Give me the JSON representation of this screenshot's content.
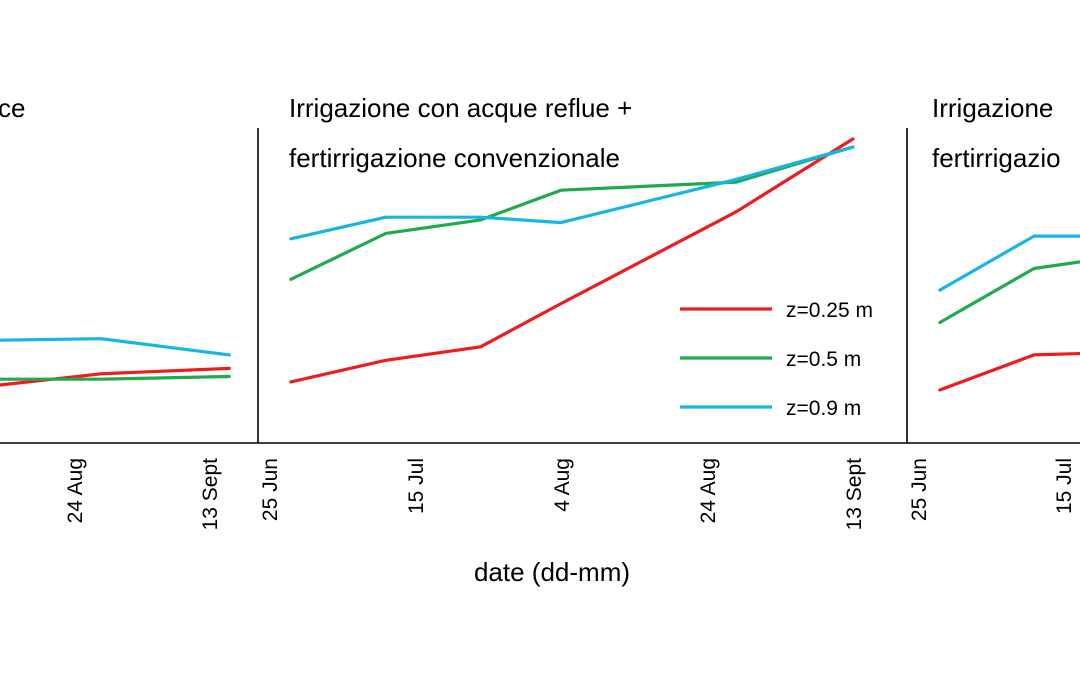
{
  "chart_data": {
    "type": "line",
    "xlabel": "date (dd-mm)",
    "colors": {
      "z025": "#ee1c1c",
      "z05": "#1faa4f",
      "z09": "#18b4e6",
      "axis": "#000000"
    },
    "legend": {
      "placement": "right of center panel",
      "entries": [
        {
          "key": "z025",
          "label": "z=0.25 m"
        },
        {
          "key": "z05",
          "label": "z=0.5 m"
        },
        {
          "key": "z09",
          "label": "z=0.9 m"
        }
      ]
    },
    "panels": [
      {
        "title_lines": [
          "ce"
        ],
        "xlim": [
          "2023-06-25",
          "2023-09-13"
        ],
        "xticks": [
          {
            "date": "2023-08-24",
            "label": "24 Aug"
          },
          {
            "date": "2023-09-13",
            "label": "13 Sept"
          }
        ],
        "series": [
          {
            "key": "z025",
            "x": [
              "2023-08-01",
              "2023-08-10",
              "2023-08-28",
              "2023-09-16"
            ],
            "y": [
              0.17,
              0.21,
              0.26,
              0.28
            ]
          },
          {
            "key": "z05",
            "x": [
              "2023-08-01",
              "2023-08-28",
              "2023-09-16"
            ],
            "y": [
              0.24,
              0.24,
              0.25
            ]
          },
          {
            "key": "z09",
            "x": [
              "2023-08-01",
              "2023-08-28",
              "2023-09-16"
            ],
            "y": [
              0.38,
              0.39,
              0.33
            ]
          }
        ]
      },
      {
        "title_lines": [
          "Irrigazione con acque reflue +",
          "fertirrigazione convenzionale"
        ],
        "xlim": [
          "2023-06-25",
          "2023-09-13"
        ],
        "xticks": [
          {
            "date": "2023-06-25",
            "label": "25 Jun"
          },
          {
            "date": "2023-07-15",
            "label": "15 Jul"
          },
          {
            "date": "2023-08-04",
            "label": "4 Aug"
          },
          {
            "date": "2023-08-24",
            "label": "24 Aug"
          },
          {
            "date": "2023-09-13",
            "label": "13 Sept"
          }
        ],
        "series": [
          {
            "key": "z025",
            "x": [
              "2023-06-28",
              "2023-07-11",
              "2023-07-24",
              "2023-08-04",
              "2023-08-28",
              "2023-09-13"
            ],
            "y": [
              0.23,
              0.31,
              0.36,
              0.52,
              0.86,
              1.13
            ]
          },
          {
            "key": "z05",
            "x": [
              "2023-06-28",
              "2023-07-11",
              "2023-07-24",
              "2023-08-04",
              "2023-08-28",
              "2023-09-13"
            ],
            "y": [
              0.61,
              0.78,
              0.83,
              0.94,
              0.97,
              1.1
            ]
          },
          {
            "key": "z09",
            "x": [
              "2023-06-28",
              "2023-07-11",
              "2023-07-24",
              "2023-08-04",
              "2023-08-28",
              "2023-09-13"
            ],
            "y": [
              0.76,
              0.84,
              0.84,
              0.82,
              0.98,
              1.1
            ]
          }
        ]
      },
      {
        "title_lines": [
          "Irrigazione",
          "fertirrigazio"
        ],
        "xlim": [
          "2023-06-25",
          "2023-09-13"
        ],
        "xticks": [
          {
            "date": "2023-06-25",
            "label": "25 Jun"
          },
          {
            "date": "2023-07-15",
            "label": "15 Jul"
          }
        ],
        "series": [
          {
            "key": "z025",
            "x": [
              "2023-06-28",
              "2023-07-11",
              "2023-07-24"
            ],
            "y": [
              0.2,
              0.33,
              0.34
            ]
          },
          {
            "key": "z05",
            "x": [
              "2023-06-28",
              "2023-07-11",
              "2023-07-24"
            ],
            "y": [
              0.45,
              0.65,
              0.7
            ]
          },
          {
            "key": "z09",
            "x": [
              "2023-06-28",
              "2023-07-11",
              "2023-07-24"
            ],
            "y": [
              0.57,
              0.77,
              0.77
            ]
          }
        ]
      }
    ]
  }
}
